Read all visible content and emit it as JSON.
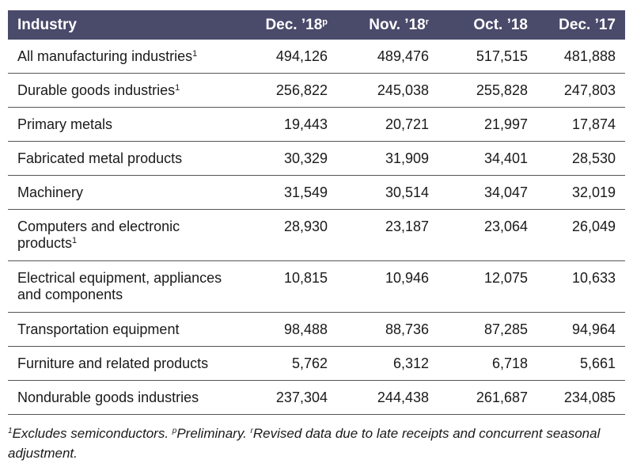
{
  "table": {
    "headers": {
      "industry": "Industry",
      "col1": "Dec. ’18",
      "col1_mark": "p",
      "col2": "Nov. ’18",
      "col2_mark": "r",
      "col3": "Oct. ’18",
      "col4": "Dec. ’17"
    },
    "rows": [
      {
        "label": "All manufacturing industries",
        "mark": "1",
        "values": [
          "494,126",
          "489,476",
          "517,515",
          "481,888"
        ]
      },
      {
        "label": "Durable goods industries",
        "mark": "1",
        "values": [
          "256,822",
          "245,038",
          "255,828",
          "247,803"
        ]
      },
      {
        "label": "Primary metals",
        "mark": "",
        "values": [
          "19,443",
          "20,721",
          "21,997",
          "17,874"
        ]
      },
      {
        "label": "Fabricated metal products",
        "mark": "",
        "values": [
          "30,329",
          "31,909",
          "34,401",
          "28,530"
        ]
      },
      {
        "label": "Machinery",
        "mark": "",
        "values": [
          "31,549",
          "30,514",
          "34,047",
          "32,019"
        ]
      },
      {
        "label": "Computers and electronic products",
        "mark": "1",
        "values": [
          "28,930",
          "23,187",
          "23,064",
          "26,049"
        ]
      },
      {
        "label": "Electrical equipment, appliances and components",
        "mark": "",
        "values": [
          "10,815",
          "10,946",
          "12,075",
          "10,633"
        ]
      },
      {
        "label": "Transportation equipment",
        "mark": "",
        "values": [
          "98,488",
          "88,736",
          "87,285",
          "94,964"
        ]
      },
      {
        "label": "Furniture and related products",
        "mark": "",
        "values": [
          "5,762",
          "6,312",
          "6,718",
          "5,661"
        ]
      },
      {
        "label": "Nondurable goods industries",
        "mark": "",
        "values": [
          "237,304",
          "244,438",
          "261,687",
          "234,085"
        ]
      }
    ]
  },
  "footnote": {
    "mark1": "1",
    "text1": "Excludes semiconductors. ",
    "markp": "p",
    "textp": "Preliminary. ",
    "markr": "r",
    "textr": "Revised data due to late receipts and concurrent seasonal adjustment."
  },
  "colors": {
    "header_bg": "#4a4a6b",
    "header_text": "#ffffff",
    "rule": "#555555"
  }
}
